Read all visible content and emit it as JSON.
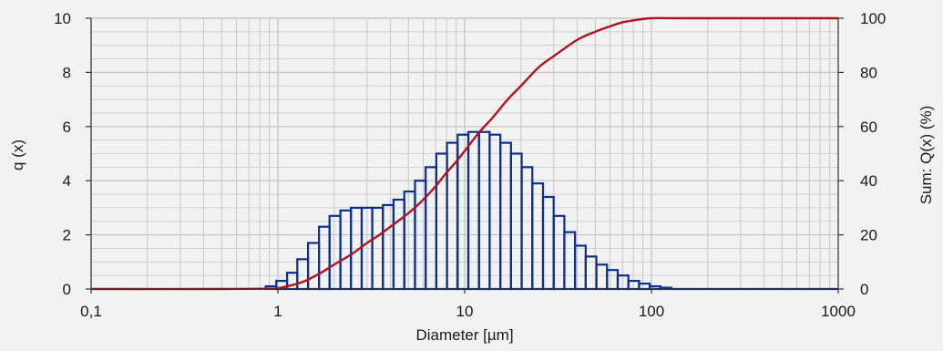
{
  "chart_data": {
    "type": "bar",
    "title": "",
    "xlabel": "Diameter [µm]",
    "ylabel": "q (x)",
    "y2label": "Sum: Q(x) (%)",
    "x_scale": "log",
    "xlim": [
      0.1,
      1000
    ],
    "ylim": [
      0,
      10
    ],
    "y2lim": [
      0,
      100
    ],
    "x_ticks": [
      "0,1",
      "1",
      "10",
      "100",
      "1000"
    ],
    "y_ticks": [
      "0",
      "2",
      "4",
      "6",
      "8",
      "10"
    ],
    "y2_ticks": [
      "0",
      "20",
      "40",
      "60",
      "80",
      "100"
    ],
    "grid": true,
    "legend": "none",
    "colors": {
      "bars": "#0d2f8c",
      "cumulative": "#b3121f",
      "grid": "#c8c8c8",
      "background": "#f2f2f2"
    },
    "series": [
      {
        "kind": "histogram",
        "axis": "left",
        "bins": [
          [
            0.86,
            0.98,
            0.1
          ],
          [
            0.98,
            1.12,
            0.3
          ],
          [
            1.12,
            1.27,
            0.6
          ],
          [
            1.27,
            1.45,
            1.1
          ],
          [
            1.45,
            1.66,
            1.7
          ],
          [
            1.66,
            1.89,
            2.3
          ],
          [
            1.89,
            2.16,
            2.7
          ],
          [
            2.16,
            2.46,
            2.9
          ],
          [
            2.46,
            2.81,
            3.0
          ],
          [
            2.81,
            3.2,
            3.0
          ],
          [
            3.2,
            3.65,
            3.0
          ],
          [
            3.65,
            4.16,
            3.1
          ],
          [
            4.16,
            4.75,
            3.3
          ],
          [
            4.75,
            5.42,
            3.6
          ],
          [
            5.42,
            6.18,
            4.0
          ],
          [
            6.18,
            7.05,
            4.5
          ],
          [
            7.05,
            8.04,
            5.0
          ],
          [
            8.04,
            9.17,
            5.4
          ],
          [
            9.17,
            10.46,
            5.7
          ],
          [
            10.46,
            11.93,
            5.8
          ],
          [
            11.93,
            13.61,
            5.8
          ],
          [
            13.61,
            15.52,
            5.7
          ],
          [
            15.52,
            17.7,
            5.4
          ],
          [
            17.7,
            20.19,
            5.0
          ],
          [
            20.19,
            23.03,
            4.5
          ],
          [
            23.03,
            26.27,
            3.9
          ],
          [
            26.27,
            29.96,
            3.4
          ],
          [
            29.96,
            34.18,
            2.7
          ],
          [
            34.18,
            38.98,
            2.1
          ],
          [
            38.98,
            44.46,
            1.6
          ],
          [
            44.46,
            50.72,
            1.2
          ],
          [
            50.72,
            57.85,
            0.9
          ],
          [
            57.85,
            65.98,
            0.7
          ],
          [
            65.98,
            75.26,
            0.5
          ],
          [
            75.26,
            85.84,
            0.3
          ],
          [
            85.84,
            97.91,
            0.2
          ],
          [
            97.91,
            111.7,
            0.1
          ],
          [
            111.7,
            127.4,
            0.05
          ]
        ]
      },
      {
        "kind": "line",
        "axis": "right",
        "points": [
          [
            0.1,
            0
          ],
          [
            0.5,
            0
          ],
          [
            0.9,
            0.1
          ],
          [
            1,
            0.3
          ],
          [
            1.2,
            1.5
          ],
          [
            1.4,
            3
          ],
          [
            1.7,
            6
          ],
          [
            2,
            9
          ],
          [
            2.5,
            13
          ],
          [
            3,
            17
          ],
          [
            3.5,
            20
          ],
          [
            4,
            23
          ],
          [
            5,
            28
          ],
          [
            6,
            33
          ],
          [
            7,
            38
          ],
          [
            8,
            43
          ],
          [
            9,
            47
          ],
          [
            10,
            51
          ],
          [
            12,
            58
          ],
          [
            14,
            63
          ],
          [
            17,
            70
          ],
          [
            20,
            75
          ],
          [
            25,
            82
          ],
          [
            30,
            86
          ],
          [
            40,
            92
          ],
          [
            50,
            95
          ],
          [
            60,
            97
          ],
          [
            70,
            98.5
          ],
          [
            80,
            99.2
          ],
          [
            100,
            100
          ],
          [
            150,
            100
          ],
          [
            1000,
            100
          ]
        ]
      }
    ]
  }
}
